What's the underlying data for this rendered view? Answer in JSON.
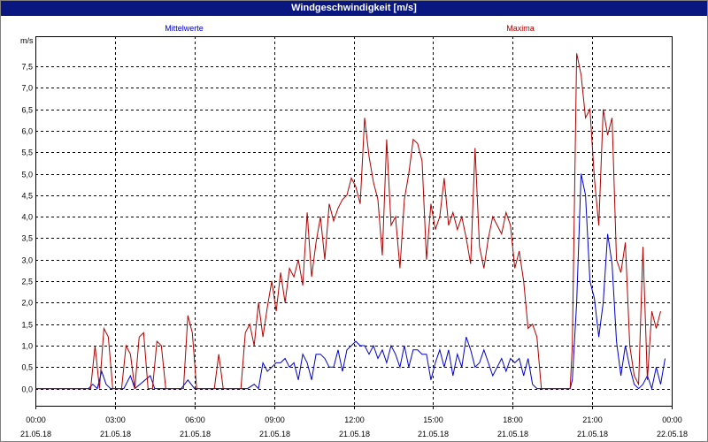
{
  "window": {
    "title": "Windgeschwindigkeit [m/s]"
  },
  "chart_data": {
    "type": "line",
    "title": "Windgeschwindigkeit [m/s]",
    "ylabel": "m/s",
    "xlabel": "",
    "ylim": [
      -0.4,
      8.2
    ],
    "xlim": [
      "2018-05-21 00:00",
      "2018-05-22 00:00"
    ],
    "yticks": [
      "0,0",
      "0,5",
      "1,0",
      "1,5",
      "2,0",
      "2,5",
      "3,0",
      "3,5",
      "4,0",
      "4,5",
      "5,0",
      "5,5",
      "6,0",
      "6,5",
      "7,0",
      "7,5"
    ],
    "xticks": [
      {
        "time": "00:00",
        "date": "21.05.18"
      },
      {
        "time": "03:00",
        "date": "21.05.18"
      },
      {
        "time": "06:00",
        "date": "21.05.18"
      },
      {
        "time": "09:00",
        "date": "21.05.18"
      },
      {
        "time": "12:00",
        "date": "21.05.18"
      },
      {
        "time": "15:00",
        "date": "21.05.18"
      },
      {
        "time": "18:00",
        "date": "21.05.18"
      },
      {
        "time": "21:00",
        "date": "21.05.18"
      },
      {
        "time": "00:00",
        "date": "22.05.18"
      }
    ],
    "grid": true,
    "series": [
      {
        "name": "Mittelwerte",
        "color": "#0000cc",
        "points": [
          [
            "00:00",
            0
          ],
          [
            "02:00",
            0
          ],
          [
            "02:10",
            0.1
          ],
          [
            "02:20",
            0
          ],
          [
            "02:30",
            0.4
          ],
          [
            "02:40",
            0.1
          ],
          [
            "02:50",
            0
          ],
          [
            "03:20",
            0
          ],
          [
            "03:35",
            0.3
          ],
          [
            "03:45",
            0
          ],
          [
            "04:20",
            0.3
          ],
          [
            "04:30",
            0
          ],
          [
            "05:30",
            0
          ],
          [
            "05:45",
            0.2
          ],
          [
            "06:00",
            0
          ],
          [
            "08:00",
            0
          ],
          [
            "08:15",
            0.1
          ],
          [
            "08:25",
            0
          ],
          [
            "08:35",
            0.6
          ],
          [
            "08:45",
            0.4
          ],
          [
            "08:55",
            0.5
          ],
          [
            "09:05",
            0.6
          ],
          [
            "09:15",
            0.6
          ],
          [
            "09:25",
            0.7
          ],
          [
            "09:35",
            0.5
          ],
          [
            "09:45",
            0.6
          ],
          [
            "09:55",
            0.2
          ],
          [
            "10:05",
            0.8
          ],
          [
            "10:15",
            0.6
          ],
          [
            "10:25",
            0.2
          ],
          [
            "10:35",
            0.8
          ],
          [
            "10:45",
            0.8
          ],
          [
            "10:55",
            0.7
          ],
          [
            "11:05",
            0.5
          ],
          [
            "11:15",
            0.5
          ],
          [
            "11:25",
            0.9
          ],
          [
            "11:35",
            0.4
          ],
          [
            "11:45",
            0.9
          ],
          [
            "11:55",
            1.0
          ],
          [
            "12:05",
            1.1
          ],
          [
            "12:15",
            1.0
          ],
          [
            "12:25",
            1.0
          ],
          [
            "12:35",
            0.8
          ],
          [
            "12:45",
            1.0
          ],
          [
            "12:55",
            0.7
          ],
          [
            "13:05",
            0.9
          ],
          [
            "13:15",
            0.6
          ],
          [
            "13:25",
            1.0
          ],
          [
            "13:35",
            0.8
          ],
          [
            "13:45",
            0.5
          ],
          [
            "13:55",
            1.0
          ],
          [
            "14:05",
            0.5
          ],
          [
            "14:15",
            0.9
          ],
          [
            "14:25",
            0.9
          ],
          [
            "14:35",
            0.8
          ],
          [
            "14:45",
            0.8
          ],
          [
            "14:55",
            0.2
          ],
          [
            "15:05",
            0.6
          ],
          [
            "15:15",
            0.9
          ],
          [
            "15:25",
            0.5
          ],
          [
            "15:35",
            0.9
          ],
          [
            "15:45",
            0.3
          ],
          [
            "15:55",
            0.8
          ],
          [
            "16:05",
            0.5
          ],
          [
            "16:15",
            1.2
          ],
          [
            "16:25",
            0.9
          ],
          [
            "16:35",
            0.5
          ],
          [
            "16:45",
            0.6
          ],
          [
            "16:55",
            0.9
          ],
          [
            "17:05",
            0.6
          ],
          [
            "17:15",
            0.3
          ],
          [
            "17:25",
            0.5
          ],
          [
            "17:35",
            0.7
          ],
          [
            "17:45",
            0.4
          ],
          [
            "17:55",
            0.7
          ],
          [
            "18:05",
            0.6
          ],
          [
            "18:15",
            0.7
          ],
          [
            "18:25",
            0.3
          ],
          [
            "18:35",
            0.7
          ],
          [
            "18:45",
            0.1
          ],
          [
            "18:55",
            0
          ],
          [
            "20:10",
            0
          ],
          [
            "20:15",
            0.2
          ],
          [
            "20:25",
            2.0
          ],
          [
            "20:35",
            5.0
          ],
          [
            "20:45",
            4.5
          ],
          [
            "20:55",
            2.5
          ],
          [
            "21:05",
            2.1
          ],
          [
            "21:15",
            1.2
          ],
          [
            "21:25",
            2.0
          ],
          [
            "21:35",
            3.6
          ],
          [
            "21:45",
            2.9
          ],
          [
            "21:55",
            1.1
          ],
          [
            "22:05",
            0.3
          ],
          [
            "22:15",
            1.0
          ],
          [
            "22:25",
            0.5
          ],
          [
            "22:35",
            0.1
          ],
          [
            "22:45",
            0
          ],
          [
            "22:55",
            0.1
          ],
          [
            "23:05",
            0.3
          ],
          [
            "23:15",
            0
          ],
          [
            "23:25",
            0.5
          ],
          [
            "23:35",
            0.1
          ],
          [
            "23:45",
            0.7
          ]
        ]
      },
      {
        "name": "Maxima",
        "color": "#b00000",
        "points": [
          [
            "00:00",
            0
          ],
          [
            "02:05",
            0
          ],
          [
            "02:15",
            1.0
          ],
          [
            "02:25",
            0
          ],
          [
            "02:35",
            1.4
          ],
          [
            "02:45",
            1.2
          ],
          [
            "02:55",
            0
          ],
          [
            "03:15",
            0
          ],
          [
            "03:25",
            1.0
          ],
          [
            "03:35",
            0.8
          ],
          [
            "03:45",
            0
          ],
          [
            "03:55",
            1.2
          ],
          [
            "04:05",
            1.3
          ],
          [
            "04:15",
            0
          ],
          [
            "04:25",
            0
          ],
          [
            "04:35",
            1.1
          ],
          [
            "04:45",
            1.0
          ],
          [
            "04:55",
            0
          ],
          [
            "05:35",
            0
          ],
          [
            "05:45",
            1.7
          ],
          [
            "05:55",
            1.3
          ],
          [
            "06:05",
            0
          ],
          [
            "06:45",
            0
          ],
          [
            "06:55",
            0.8
          ],
          [
            "07:05",
            0
          ],
          [
            "07:45",
            0
          ],
          [
            "07:55",
            1.3
          ],
          [
            "08:05",
            1.5
          ],
          [
            "08:15",
            1.0
          ],
          [
            "08:25",
            2.0
          ],
          [
            "08:35",
            1.2
          ],
          [
            "08:45",
            1.9
          ],
          [
            "08:55",
            2.5
          ],
          [
            "09:05",
            1.8
          ],
          [
            "09:15",
            2.7
          ],
          [
            "09:25",
            2.0
          ],
          [
            "09:35",
            2.8
          ],
          [
            "09:45",
            2.6
          ],
          [
            "09:55",
            3.0
          ],
          [
            "10:05",
            2.4
          ],
          [
            "10:15",
            4.1
          ],
          [
            "10:25",
            2.6
          ],
          [
            "10:35",
            3.4
          ],
          [
            "10:45",
            4.0
          ],
          [
            "10:55",
            3.0
          ],
          [
            "11:05",
            4.3
          ],
          [
            "11:15",
            3.9
          ],
          [
            "11:25",
            4.2
          ],
          [
            "11:35",
            4.4
          ],
          [
            "11:45",
            4.5
          ],
          [
            "11:55",
            4.9
          ],
          [
            "12:05",
            4.7
          ],
          [
            "12:15",
            4.3
          ],
          [
            "12:25",
            6.3
          ],
          [
            "12:35",
            5.4
          ],
          [
            "12:45",
            4.8
          ],
          [
            "12:55",
            4.4
          ],
          [
            "13:05",
            3.1
          ],
          [
            "13:15",
            5.8
          ],
          [
            "13:25",
            3.8
          ],
          [
            "13:35",
            4.0
          ],
          [
            "13:45",
            2.8
          ],
          [
            "13:55",
            4.4
          ],
          [
            "14:05",
            5.0
          ],
          [
            "14:15",
            5.8
          ],
          [
            "14:25",
            5.7
          ],
          [
            "14:35",
            5.3
          ],
          [
            "14:45",
            3.0
          ],
          [
            "14:55",
            4.3
          ],
          [
            "15:05",
            3.7
          ],
          [
            "15:15",
            4.0
          ],
          [
            "15:25",
            4.9
          ],
          [
            "15:35",
            3.8
          ],
          [
            "15:45",
            4.1
          ],
          [
            "15:55",
            3.7
          ],
          [
            "16:05",
            4.0
          ],
          [
            "16:15",
            3.5
          ],
          [
            "16:25",
            2.9
          ],
          [
            "16:35",
            5.6
          ],
          [
            "16:45",
            3.3
          ],
          [
            "16:55",
            2.8
          ],
          [
            "17:05",
            3.5
          ],
          [
            "17:15",
            4.0
          ],
          [
            "17:25",
            3.8
          ],
          [
            "17:35",
            3.6
          ],
          [
            "17:45",
            4.1
          ],
          [
            "17:55",
            3.8
          ],
          [
            "18:05",
            2.8
          ],
          [
            "18:15",
            3.2
          ],
          [
            "18:25",
            2.5
          ],
          [
            "18:35",
            1.4
          ],
          [
            "18:45",
            1.5
          ],
          [
            "18:55",
            1.2
          ],
          [
            "19:05",
            0
          ],
          [
            "20:10",
            0
          ],
          [
            "20:15",
            1.0
          ],
          [
            "20:25",
            7.8
          ],
          [
            "20:35",
            7.3
          ],
          [
            "20:45",
            6.3
          ],
          [
            "20:55",
            6.5
          ],
          [
            "21:05",
            4.9
          ],
          [
            "21:15",
            3.8
          ],
          [
            "21:25",
            6.5
          ],
          [
            "21:35",
            5.9
          ],
          [
            "21:45",
            6.3
          ],
          [
            "21:55",
            3.0
          ],
          [
            "22:05",
            2.7
          ],
          [
            "22:15",
            3.4
          ],
          [
            "22:25",
            1.0
          ],
          [
            "22:35",
            0.3
          ],
          [
            "22:45",
            0.1
          ],
          [
            "22:55",
            3.3
          ],
          [
            "23:05",
            0.2
          ],
          [
            "23:15",
            1.8
          ],
          [
            "23:25",
            1.4
          ],
          [
            "23:35",
            1.8
          ]
        ]
      }
    ]
  }
}
